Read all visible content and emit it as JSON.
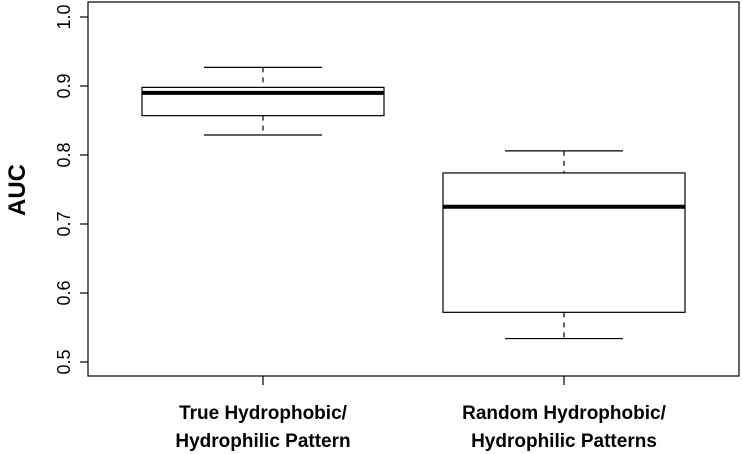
{
  "chart_data": {
    "type": "boxplot",
    "ylabel": "AUC",
    "xlabel": "",
    "ylim": [
      0.5,
      1.0
    ],
    "yticks": [
      "0.5",
      "0.6",
      "0.7",
      "0.8",
      "0.9",
      "1.0"
    ],
    "categories": [
      [
        "True Hydrophobic/",
        "Hydrophilic Pattern"
      ],
      [
        "Random Hydrophobic/",
        "Hydrophilic Patterns"
      ]
    ],
    "boxes": [
      {
        "whisker_low": 0.829,
        "q1": 0.857,
        "median": 0.89,
        "q3": 0.898,
        "whisker_high": 0.927
      },
      {
        "whisker_low": 0.534,
        "q1": 0.572,
        "median": 0.725,
        "q3": 0.774,
        "whisker_high": 0.806
      }
    ],
    "grid": false,
    "legend": "none"
  }
}
